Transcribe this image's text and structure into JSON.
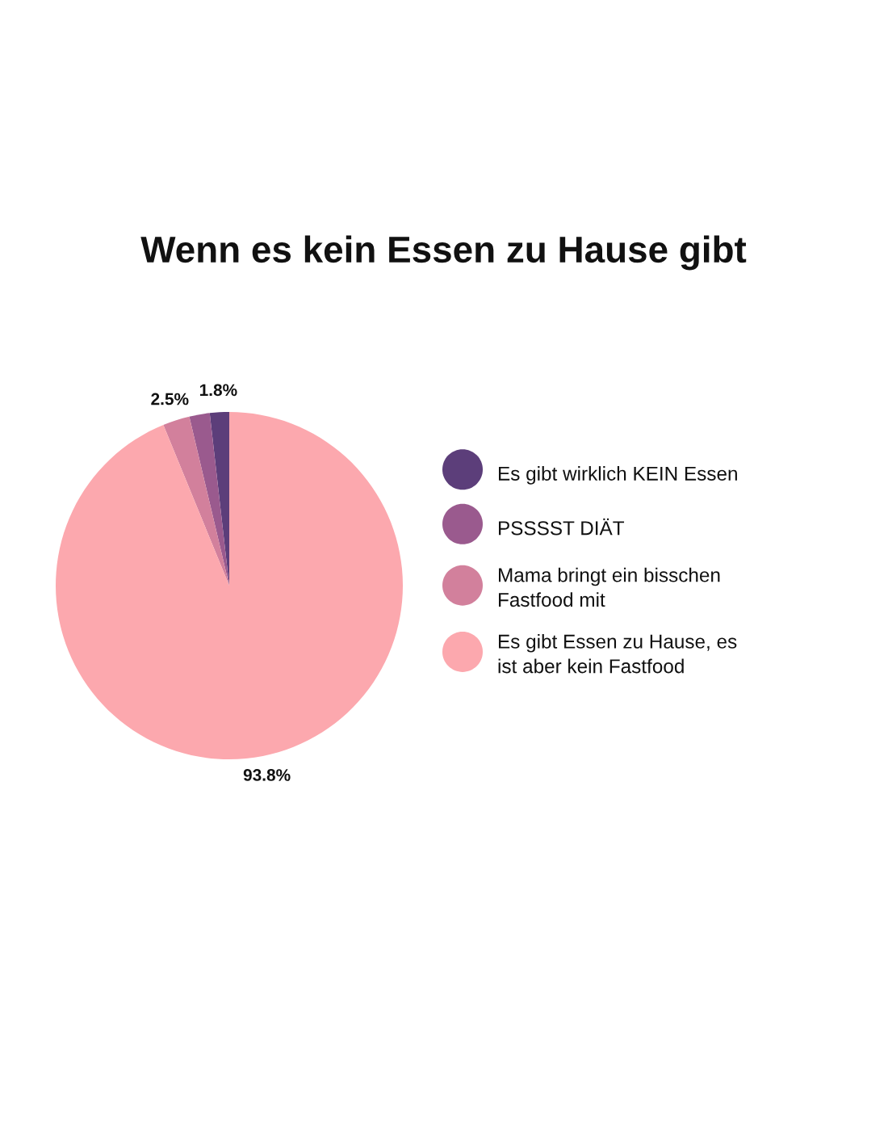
{
  "chart_data": {
    "type": "pie",
    "title": "Wenn es kein Essen zu Hause gibt",
    "categories": [
      "Es gibt wirklich KEIN Essen",
      "PSSSST DIÄT",
      "Mama bringt ein bisschen Fastfood mit",
      "Es gibt Essen zu Hause, es ist aber kein Fastfood"
    ],
    "values": [
      1.8,
      1.9,
      2.5,
      93.8
    ],
    "value_labels": [
      "1.8%",
      null,
      "2.5%",
      "93.8%"
    ],
    "colors": [
      "#5c3e7a",
      "#9a5a8e",
      "#d2809c",
      "#fca8ae"
    ],
    "legend": "right"
  }
}
